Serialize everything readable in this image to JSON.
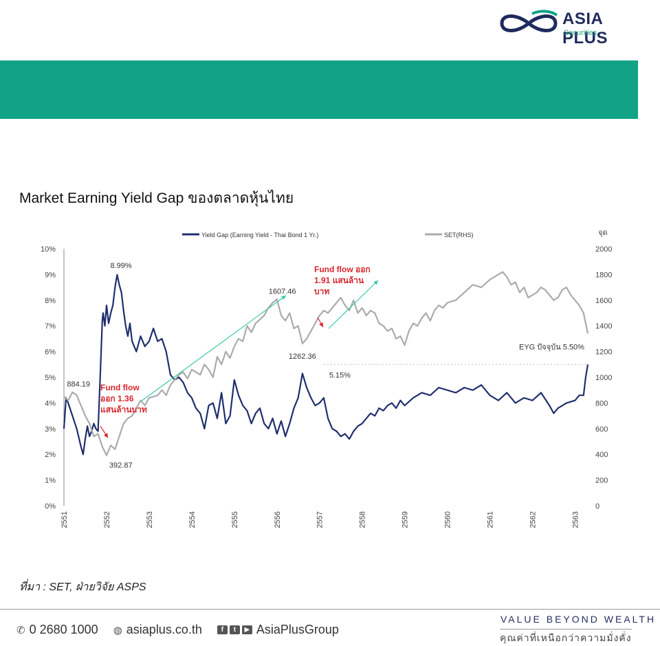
{
  "brand": {
    "name": "ASIA PLUS",
    "sub": "Securities",
    "colors": {
      "navy": "#1f2b5c",
      "teal": "#11a386"
    }
  },
  "page_title": "Market Earning Yield Gap ของตลาดหุ้นไทย",
  "source": "ที่มา : SET, ฝ่ายวิจัย ASPS",
  "footer": {
    "phone": "0 2680 1000",
    "website": "asiaplus.co.th",
    "social": "AsiaPlusGroup",
    "tagline": "VALUE  BEYOND  WEALTH",
    "tagline_th": "คุณค่าที่เหนือกว่าความมั่งคั่ง"
  },
  "chart_data": {
    "type": "line",
    "title": "",
    "y2label": "จุด",
    "legend_position": "top",
    "legend": [
      "Yield Gap (Earning Yield - Thai Bond 1 Yr.)",
      "SET(RHS)"
    ],
    "x_ticks": [
      "2551",
      "2552",
      "2553",
      "2554",
      "2555",
      "2556",
      "2557",
      "2558",
      "2559",
      "2560",
      "2561",
      "2562",
      "2563"
    ],
    "xlim": [
      2551,
      2563.3
    ],
    "y_ticks": [
      "0%",
      "1%",
      "2%",
      "3%",
      "4%",
      "5%",
      "6%",
      "7%",
      "8%",
      "9%",
      "10%"
    ],
    "ylim": [
      0,
      10
    ],
    "y2_ticks": [
      "0",
      "200",
      "400",
      "600",
      "800",
      "1000",
      "1200",
      "1400",
      "1600",
      "1800",
      "2000"
    ],
    "y2lim": [
      0,
      2000
    ],
    "series": [
      {
        "name": "Yield Gap (Earning Yield - Thai Bond 1 Yr.)",
        "axis": "left",
        "color": "#1f2f6e",
        "x": [
          2551.0,
          2551.05,
          2551.1,
          2551.2,
          2551.3,
          2551.4,
          2551.45,
          2551.5,
          2551.55,
          2551.6,
          2551.65,
          2551.7,
          2551.75,
          2551.8,
          2551.85,
          2551.9,
          2551.92,
          2551.96,
          2552.0,
          2552.05,
          2552.1,
          2552.15,
          2552.2,
          2552.25,
          2552.3,
          2552.35,
          2552.4,
          2552.45,
          2552.5,
          2552.55,
          2552.6,
          2552.7,
          2552.8,
          2552.9,
          2553.0,
          2553.1,
          2553.2,
          2553.3,
          2553.4,
          2553.5,
          2553.6,
          2553.7,
          2553.8,
          2553.9,
          2554.0,
          2554.1,
          2554.2,
          2554.3,
          2554.4,
          2554.5,
          2554.6,
          2554.7,
          2554.8,
          2554.9,
          2555.0,
          2555.1,
          2555.2,
          2555.3,
          2555.4,
          2555.5,
          2555.6,
          2555.7,
          2555.8,
          2555.9,
          2556.0,
          2556.1,
          2556.2,
          2556.3,
          2556.4,
          2556.5,
          2556.6,
          2556.7,
          2556.8,
          2556.9,
          2557.0,
          2557.1,
          2557.2,
          2557.3,
          2557.4,
          2557.5,
          2557.6,
          2557.7,
          2557.8,
          2557.9,
          2558.0,
          2558.1,
          2558.2,
          2558.3,
          2558.4,
          2558.5,
          2558.6,
          2558.7,
          2558.8,
          2558.9,
          2559.0,
          2559.2,
          2559.4,
          2559.6,
          2559.8,
          2560.0,
          2560.2,
          2560.4,
          2560.6,
          2560.8,
          2561.0,
          2561.2,
          2561.4,
          2561.6,
          2561.8,
          2562.0,
          2562.2,
          2562.4,
          2562.5,
          2562.6,
          2562.8,
          2563.0,
          2563.1,
          2563.2,
          2563.25,
          2563.3
        ],
        "y": [
          3.0,
          4.2,
          4.0,
          3.5,
          3.0,
          2.3,
          2.0,
          2.6,
          3.1,
          2.7,
          2.9,
          3.2,
          3.0,
          2.9,
          5.0,
          7.2,
          7.5,
          7.0,
          7.8,
          7.1,
          7.5,
          7.8,
          8.5,
          8.99,
          8.6,
          8.3,
          7.6,
          7.0,
          6.6,
          7.1,
          6.4,
          6.0,
          6.6,
          6.2,
          6.4,
          6.9,
          6.4,
          6.5,
          6.0,
          5.1,
          4.9,
          5.0,
          4.8,
          4.4,
          4.2,
          3.8,
          3.6,
          3.0,
          3.9,
          4.0,
          3.4,
          4.4,
          3.2,
          3.5,
          4.9,
          4.3,
          3.9,
          3.7,
          3.2,
          3.6,
          3.8,
          3.2,
          3.0,
          3.4,
          2.8,
          3.3,
          2.7,
          3.2,
          3.8,
          4.2,
          5.15,
          4.6,
          4.2,
          3.9,
          4.0,
          4.2,
          3.4,
          3.0,
          2.9,
          2.7,
          2.8,
          2.6,
          2.9,
          3.1,
          3.2,
          3.4,
          3.6,
          3.5,
          3.8,
          3.7,
          3.9,
          4.0,
          3.8,
          4.1,
          3.9,
          4.2,
          4.4,
          4.3,
          4.6,
          4.5,
          4.4,
          4.6,
          4.5,
          4.7,
          4.3,
          4.1,
          4.4,
          4.0,
          4.2,
          4.1,
          4.4,
          3.9,
          3.6,
          3.8,
          4.0,
          4.1,
          4.3,
          4.3,
          5.0,
          5.5
        ]
      },
      {
        "name": "SET(RHS)",
        "axis": "right",
        "color": "#ababab",
        "x": [
          2551.0,
          2551.1,
          2551.2,
          2551.3,
          2551.4,
          2551.5,
          2551.6,
          2551.7,
          2551.8,
          2551.9,
          2552.0,
          2552.1,
          2552.2,
          2552.3,
          2552.4,
          2552.5,
          2552.6,
          2552.7,
          2552.8,
          2552.9,
          2553.0,
          2553.1,
          2553.2,
          2553.3,
          2553.4,
          2553.5,
          2553.6,
          2553.7,
          2553.8,
          2553.9,
          2554.0,
          2554.1,
          2554.2,
          2554.3,
          2554.4,
          2554.5,
          2554.6,
          2554.7,
          2554.8,
          2554.9,
          2555.0,
          2555.1,
          2555.2,
          2555.3,
          2555.4,
          2555.5,
          2555.6,
          2555.7,
          2555.8,
          2555.9,
          2556.0,
          2556.1,
          2556.2,
          2556.3,
          2556.4,
          2556.5,
          2556.6,
          2556.7,
          2556.8,
          2556.9,
          2557.0,
          2557.1,
          2557.2,
          2557.3,
          2557.4,
          2557.5,
          2557.6,
          2557.7,
          2557.8,
          2557.9,
          2558.0,
          2558.1,
          2558.2,
          2558.3,
          2558.4,
          2558.5,
          2558.6,
          2558.7,
          2558.8,
          2558.9,
          2559.0,
          2559.1,
          2559.2,
          2559.3,
          2559.4,
          2559.5,
          2559.6,
          2559.7,
          2559.8,
          2559.9,
          2560.0,
          2560.2,
          2560.4,
          2560.6,
          2560.8,
          2561.0,
          2561.1,
          2561.2,
          2561.3,
          2561.4,
          2561.5,
          2561.6,
          2561.7,
          2561.8,
          2561.9,
          2562.0,
          2562.1,
          2562.2,
          2562.3,
          2562.4,
          2562.5,
          2562.6,
          2562.7,
          2562.8,
          2562.9,
          2563.0,
          2563.1,
          2563.2,
          2563.25,
          2563.3
        ],
        "y": [
          850,
          820,
          884.19,
          860,
          780,
          700,
          640,
          540,
          560,
          460,
          392.87,
          470,
          440,
          540,
          640,
          680,
          700,
          760,
          820,
          780,
          840,
          850,
          860,
          900,
          860,
          940,
          980,
          1020,
          1040,
          990,
          1060,
          1040,
          1020,
          1100,
          1060,
          1000,
          1160,
          1100,
          1200,
          1150,
          1240,
          1300,
          1280,
          1400,
          1350,
          1420,
          1450,
          1480,
          1540,
          1580,
          1607.46,
          1480,
          1440,
          1500,
          1380,
          1400,
          1262.36,
          1300,
          1360,
          1420,
          1480,
          1520,
          1500,
          1540,
          1580,
          1620,
          1560,
          1520,
          1600,
          1500,
          1540,
          1480,
          1520,
          1500,
          1420,
          1400,
          1360,
          1380,
          1300,
          1320,
          1250,
          1360,
          1420,
          1400,
          1460,
          1500,
          1440,
          1520,
          1560,
          1540,
          1580,
          1600,
          1660,
          1720,
          1700,
          1760,
          1780,
          1800,
          1820,
          1780,
          1720,
          1740,
          1660,
          1700,
          1620,
          1640,
          1660,
          1700,
          1680,
          1640,
          1600,
          1620,
          1680,
          1700,
          1640,
          1600,
          1560,
          1500,
          1420,
          1340
        ]
      }
    ],
    "annotations": [
      {
        "text": "8.99%",
        "x": 2552.25,
        "axis": "left",
        "y": 8.99
      },
      {
        "text": "884.19",
        "x": 2551.2,
        "axis": "right",
        "y": 884.19
      },
      {
        "text": "392.87",
        "x": 2552.0,
        "axis": "right",
        "y": 392.87
      },
      {
        "text": "1607.46",
        "x": 2556.0,
        "axis": "right",
        "y": 1607.46
      },
      {
        "text": "1262.36",
        "x": 2556.6,
        "axis": "right",
        "y": 1262.36
      },
      {
        "text": "5.15%",
        "x": 2557.0,
        "axis": "left",
        "y": 5.15
      },
      {
        "text": "EYG ปัจจุบัน 5.50%",
        "x": 2563.3,
        "axis": "left",
        "y": 5.5
      }
    ],
    "callouts": [
      {
        "lines": [
          "Fund flow",
          "ออก 1.36",
          "แสนล้านบาท"
        ],
        "color": "#d8262f"
      },
      {
        "lines": [
          "Fund flow ออก",
          "1.91 แสนล้าน",
          "บาท"
        ],
        "color": "#d8262f"
      }
    ]
  }
}
